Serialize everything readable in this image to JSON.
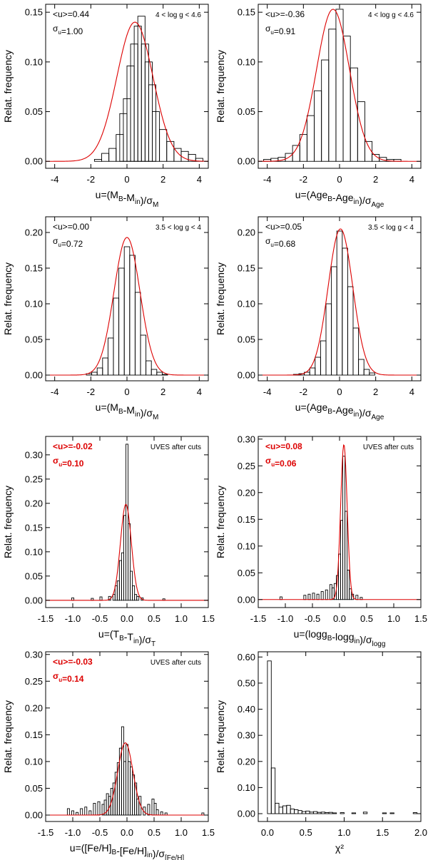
{
  "chart_data": [
    {
      "type": "bar",
      "xlabel": "u=(M_B-M_in)/σ_M",
      "ylabel": "Relat. frequency",
      "xlim": [
        -4.5,
        4.5
      ],
      "ylim": [
        -0.007,
        0.158
      ],
      "xticks": [
        -4,
        -2,
        0,
        2,
        4
      ],
      "yticks": [
        0.0,
        0.05,
        0.1,
        0.15
      ],
      "xtick_labels": [
        "-4",
        "-2",
        "0",
        "2",
        "4"
      ],
      "ytick_labels": [
        "0.00",
        "0.05",
        "0.10",
        "0.15"
      ],
      "annotations": {
        "mean": "<u>=0.44",
        "sigma": "σ_u=1.00",
        "condition": "4 < log g < 4.6",
        "color": "#000000"
      },
      "bin_width": 0.4,
      "bins": [
        {
          "x": -1.6,
          "y": 0.002
        },
        {
          "x": -1.2,
          "y": 0.008
        },
        {
          "x": -0.8,
          "y": 0.013
        },
        {
          "x": -0.4,
          "y": 0.027
        },
        {
          "x": -0.2,
          "y": 0.048
        },
        {
          "x": 0.0,
          "y": 0.063
        },
        {
          "x": 0.2,
          "y": 0.096
        },
        {
          "x": 0.4,
          "y": 0.118
        },
        {
          "x": 0.6,
          "y": 0.136
        },
        {
          "x": 0.8,
          "y": 0.146
        },
        {
          "x": 1.0,
          "y": 0.118
        },
        {
          "x": 1.2,
          "y": 0.1
        },
        {
          "x": 1.4,
          "y": 0.077
        },
        {
          "x": 1.6,
          "y": 0.05
        },
        {
          "x": 2.0,
          "y": 0.032
        },
        {
          "x": 2.4,
          "y": 0.02
        },
        {
          "x": 2.8,
          "y": 0.013
        },
        {
          "x": 3.2,
          "y": 0.01
        },
        {
          "x": 3.6,
          "y": 0.007
        },
        {
          "x": 4.0,
          "y": 0.003
        }
      ],
      "fit": {
        "mean": 0.44,
        "sigma": 1.0,
        "peak": 0.14,
        "color": "#dd0000"
      }
    },
    {
      "type": "bar",
      "xlabel": "u=(Age_B-Age_in)/σ_Age",
      "ylabel": "Relat. frequency",
      "xlim": [
        -4.5,
        4.5
      ],
      "ylim": [
        -0.007,
        0.158
      ],
      "xticks": [
        -4,
        -2,
        0,
        2,
        4
      ],
      "yticks": [
        0.0,
        0.05,
        0.1,
        0.15
      ],
      "xtick_labels": [
        "-4",
        "-2",
        "0",
        "2",
        "4"
      ],
      "ytick_labels": [
        "0.00",
        "0.05",
        "0.10",
        "0.15"
      ],
      "annotations": {
        "mean": "<u>=-0.36",
        "sigma": "σ_u=0.91",
        "condition": "4 < log g < 4.6",
        "color": "#000000"
      },
      "bin_width": 0.4,
      "bins": [
        {
          "x": -4.0,
          "y": 0.002
        },
        {
          "x": -3.6,
          "y": 0.003
        },
        {
          "x": -3.2,
          "y": 0.004
        },
        {
          "x": -2.8,
          "y": 0.008
        },
        {
          "x": -2.4,
          "y": 0.016
        },
        {
          "x": -2.0,
          "y": 0.027
        },
        {
          "x": -1.6,
          "y": 0.046
        },
        {
          "x": -1.2,
          "y": 0.071
        },
        {
          "x": -0.8,
          "y": 0.102
        },
        {
          "x": -0.4,
          "y": 0.133
        },
        {
          "x": 0.0,
          "y": 0.153
        },
        {
          "x": 0.4,
          "y": 0.126
        },
        {
          "x": 0.8,
          "y": 0.094
        },
        {
          "x": 1.2,
          "y": 0.06
        },
        {
          "x": 1.6,
          "y": 0.02
        },
        {
          "x": 2.0,
          "y": 0.007
        },
        {
          "x": 2.4,
          "y": 0.004
        },
        {
          "x": 2.8,
          "y": 0.002
        },
        {
          "x": 3.2,
          "y": 0.002
        }
      ],
      "fit": {
        "mean": -0.36,
        "sigma": 0.91,
        "peak": 0.153,
        "color": "#dd0000"
      }
    },
    {
      "type": "bar",
      "xlabel": "u=(M_B-M_in)/σ_M",
      "ylabel": "Relat. frequency",
      "xlim": [
        -4.5,
        4.5
      ],
      "ylim": [
        -0.008,
        0.222
      ],
      "xticks": [
        -4,
        -2,
        0,
        2,
        4
      ],
      "yticks": [
        0.0,
        0.05,
        0.1,
        0.15,
        0.2
      ],
      "xtick_labels": [
        "-4",
        "-2",
        "0",
        "2",
        "4"
      ],
      "ytick_labels": [
        "0.00",
        "0.05",
        "0.10",
        "0.15",
        "0.20"
      ],
      "annotations": {
        "mean": "<u>=0.00",
        "sigma": "σ_u=0.72",
        "condition": "3.5 < log g < 4",
        "color": "#000000"
      },
      "bin_width": 0.3,
      "bins": [
        {
          "x": -2.1,
          "y": 0.002
        },
        {
          "x": -1.8,
          "y": 0.004
        },
        {
          "x": -1.5,
          "y": 0.01
        },
        {
          "x": -1.2,
          "y": 0.024
        },
        {
          "x": -0.9,
          "y": 0.052
        },
        {
          "x": -0.6,
          "y": 0.108
        },
        {
          "x": -0.3,
          "y": 0.15
        },
        {
          "x": 0.0,
          "y": 0.18
        },
        {
          "x": 0.3,
          "y": 0.168
        },
        {
          "x": 0.6,
          "y": 0.116
        },
        {
          "x": 0.9,
          "y": 0.056
        },
        {
          "x": 1.2,
          "y": 0.02
        },
        {
          "x": 1.5,
          "y": 0.008
        },
        {
          "x": 1.8,
          "y": 0.004
        },
        {
          "x": 2.1,
          "y": 0.001
        }
      ],
      "fit": {
        "mean": 0.0,
        "sigma": 0.72,
        "peak": 0.193,
        "color": "#dd0000"
      }
    },
    {
      "type": "bar",
      "xlabel": "u=(Age_B-Age_in)/σ_Age",
      "ylabel": "Relat. frequency",
      "xlim": [
        -4.5,
        4.5
      ],
      "ylim": [
        -0.008,
        0.222
      ],
      "xticks": [
        -4,
        -2,
        0,
        2,
        4
      ],
      "yticks": [
        0.0,
        0.05,
        0.1,
        0.15,
        0.2
      ],
      "xtick_labels": [
        "-4",
        "-2",
        "0",
        "2",
        "4"
      ],
      "ytick_labels": [
        "0.00",
        "0.05",
        "0.10",
        "0.15",
        "0.20"
      ],
      "annotations": {
        "mean": "<u>=0.05",
        "sigma": "σ_u=0.68",
        "condition": "3.5 < log g < 4",
        "color": "#000000"
      },
      "bin_width": 0.3,
      "bins": [
        {
          "x": -2.4,
          "y": 0.001
        },
        {
          "x": -2.1,
          "y": 0.002
        },
        {
          "x": -1.8,
          "y": 0.004
        },
        {
          "x": -1.5,
          "y": 0.01
        },
        {
          "x": -1.2,
          "y": 0.025
        },
        {
          "x": -0.9,
          "y": 0.048
        },
        {
          "x": -0.6,
          "y": 0.1
        },
        {
          "x": -0.3,
          "y": 0.152
        },
        {
          "x": 0.0,
          "y": 0.202
        },
        {
          "x": 0.3,
          "y": 0.178
        },
        {
          "x": 0.6,
          "y": 0.124
        },
        {
          "x": 0.9,
          "y": 0.066
        },
        {
          "x": 1.2,
          "y": 0.022
        },
        {
          "x": 1.5,
          "y": 0.008
        },
        {
          "x": 1.8,
          "y": 0.003
        }
      ],
      "fit": {
        "mean": 0.05,
        "sigma": 0.68,
        "peak": 0.205,
        "color": "#dd0000"
      }
    },
    {
      "type": "bar",
      "xlabel": "u=(T_B-T_in)/σ_T",
      "ylabel": "Relat. frequency",
      "xlim": [
        -1.5,
        1.5
      ],
      "ylim": [
        -0.015,
        0.338
      ],
      "xticks": [
        -1.5,
        -1.0,
        -0.5,
        0.0,
        0.5,
        1.0,
        1.5
      ],
      "yticks": [
        0.0,
        0.05,
        0.1,
        0.15,
        0.2,
        0.25,
        0.3
      ],
      "xtick_labels": [
        "-1.5",
        "-1.0",
        "-0.5",
        "0.0",
        "0.5",
        "1.0",
        "1.5"
      ],
      "ytick_labels": [
        "0.00",
        "0.05",
        "0.10",
        "0.15",
        "0.20",
        "0.25",
        "0.30"
      ],
      "annotations": {
        "mean": "<u>=-0.02",
        "sigma": "σ_u=0.10",
        "condition": "UVES after cuts",
        "color": "#dd0000"
      },
      "bin_width": 0.04,
      "bins": [
        {
          "x": -1.0,
          "y": 0.005
        },
        {
          "x": -0.64,
          "y": 0.004
        },
        {
          "x": -0.48,
          "y": 0.007
        },
        {
          "x": -0.32,
          "y": 0.008
        },
        {
          "x": -0.24,
          "y": 0.012
        },
        {
          "x": -0.2,
          "y": 0.03
        },
        {
          "x": -0.16,
          "y": 0.04
        },
        {
          "x": -0.12,
          "y": 0.082
        },
        {
          "x": -0.08,
          "y": 0.098
        },
        {
          "x": -0.04,
          "y": 0.175
        },
        {
          "x": 0.0,
          "y": 0.322
        },
        {
          "x": 0.04,
          "y": 0.158
        },
        {
          "x": 0.08,
          "y": 0.06
        },
        {
          "x": 0.12,
          "y": 0.03
        },
        {
          "x": 0.16,
          "y": 0.012
        },
        {
          "x": 0.2,
          "y": 0.008
        },
        {
          "x": 0.28,
          "y": 0.005
        },
        {
          "x": 0.68,
          "y": 0.003
        }
      ],
      "fit": {
        "mean": -0.02,
        "sigma": 0.1,
        "peak": 0.198,
        "color": "#dd0000"
      }
    },
    {
      "type": "bar",
      "xlabel": "u=(logg_B-logg_in)/σ_logg",
      "ylabel": "Relat. frequency",
      "xlim": [
        -1.5,
        1.5
      ],
      "ylim": [
        -0.015,
        0.305
      ],
      "xticks": [
        -1.5,
        -1.0,
        -0.5,
        0.0,
        0.5,
        1.0,
        1.5
      ],
      "yticks": [
        0.0,
        0.05,
        0.1,
        0.15,
        0.2,
        0.25,
        0.3
      ],
      "xtick_labels": [
        "-1.5",
        "-1.0",
        "-0.5",
        "0.0",
        "0.5",
        "1.0",
        "1.5"
      ],
      "ytick_labels": [
        "0.00",
        "0.05",
        "0.10",
        "0.15",
        "0.20",
        "0.25",
        "0.30"
      ],
      "annotations": {
        "mean": "<u>=0.08",
        "sigma": "σ_u=0.06",
        "condition": "UVES after cuts",
        "color": "#dd0000"
      },
      "bin_width": 0.04,
      "bins": [
        {
          "x": -1.08,
          "y": 0.005
        },
        {
          "x": -0.64,
          "y": 0.008
        },
        {
          "x": -0.56,
          "y": 0.01
        },
        {
          "x": -0.48,
          "y": 0.012
        },
        {
          "x": -0.4,
          "y": 0.01
        },
        {
          "x": -0.32,
          "y": 0.015
        },
        {
          "x": -0.24,
          "y": 0.018
        },
        {
          "x": -0.16,
          "y": 0.028
        },
        {
          "x": -0.12,
          "y": 0.022
        },
        {
          "x": -0.08,
          "y": 0.03
        },
        {
          "x": -0.04,
          "y": 0.045
        },
        {
          "x": 0.0,
          "y": 0.085
        },
        {
          "x": 0.04,
          "y": 0.148
        },
        {
          "x": 0.08,
          "y": 0.268
        },
        {
          "x": 0.12,
          "y": 0.165
        },
        {
          "x": 0.16,
          "y": 0.055
        },
        {
          "x": 0.2,
          "y": 0.02
        },
        {
          "x": 0.24,
          "y": 0.01
        },
        {
          "x": 0.32,
          "y": 0.008
        },
        {
          "x": 0.4,
          "y": 0.004
        }
      ],
      "fit": {
        "mean": 0.08,
        "sigma": 0.06,
        "peak": 0.29,
        "color": "#dd0000"
      }
    },
    {
      "type": "bar",
      "xlabel": "u=([Fe/H]_B-[Fe/H]_in)/σ_[Fe/H]",
      "ylabel": "Relat. frequency",
      "xlim": [
        -1.5,
        1.5
      ],
      "ylim": [
        -0.012,
        0.305
      ],
      "xticks": [
        -1.5,
        -1.0,
        -0.5,
        0.0,
        0.5,
        1.0,
        1.5
      ],
      "yticks": [
        0.0,
        0.05,
        0.1,
        0.15,
        0.2,
        0.25,
        0.3
      ],
      "xtick_labels": [
        "-1.5",
        "-1.0",
        "-0.5",
        "0.0",
        "0.5",
        "1.0",
        "1.5"
      ],
      "ytick_labels": [
        "0.00",
        "0.05",
        "0.10",
        "0.15",
        "0.20",
        "0.25",
        "0.30"
      ],
      "annotations": {
        "mean": "<u>=-0.03",
        "sigma": "σ_u=0.14",
        "condition": "UVES after cuts",
        "color": "#dd0000"
      },
      "bin_width": 0.04,
      "bins": [
        {
          "x": -1.08,
          "y": 0.012
        },
        {
          "x": -1.0,
          "y": 0.008
        },
        {
          "x": -0.92,
          "y": 0.005
        },
        {
          "x": -0.84,
          "y": 0.012
        },
        {
          "x": -0.76,
          "y": 0.015
        },
        {
          "x": -0.68,
          "y": 0.008
        },
        {
          "x": -0.6,
          "y": 0.022
        },
        {
          "x": -0.52,
          "y": 0.025
        },
        {
          "x": -0.44,
          "y": 0.02
        },
        {
          "x": -0.4,
          "y": 0.028
        },
        {
          "x": -0.36,
          "y": 0.04
        },
        {
          "x": -0.32,
          "y": 0.035
        },
        {
          "x": -0.28,
          "y": 0.05
        },
        {
          "x": -0.24,
          "y": 0.06
        },
        {
          "x": -0.2,
          "y": 0.08
        },
        {
          "x": -0.16,
          "y": 0.098
        },
        {
          "x": -0.12,
          "y": 0.125
        },
        {
          "x": -0.08,
          "y": 0.165
        },
        {
          "x": -0.04,
          "y": 0.1
        },
        {
          "x": 0.0,
          "y": 0.132
        },
        {
          "x": 0.04,
          "y": 0.1
        },
        {
          "x": 0.08,
          "y": 0.09
        },
        {
          "x": 0.12,
          "y": 0.075
        },
        {
          "x": 0.16,
          "y": 0.06
        },
        {
          "x": 0.2,
          "y": 0.03
        },
        {
          "x": 0.24,
          "y": 0.035
        },
        {
          "x": 0.32,
          "y": 0.015
        },
        {
          "x": 0.4,
          "y": 0.02
        },
        {
          "x": 0.48,
          "y": 0.03
        },
        {
          "x": 0.52,
          "y": 0.022
        },
        {
          "x": 0.56,
          "y": 0.01
        },
        {
          "x": 0.64,
          "y": 0.006
        },
        {
          "x": 0.72,
          "y": 0.004
        },
        {
          "x": 1.4,
          "y": 0.004
        }
      ],
      "fit": {
        "mean": -0.03,
        "sigma": 0.14,
        "peak": 0.135,
        "color": "#dd0000"
      }
    },
    {
      "type": "bar",
      "xlabel": "χ²",
      "ylabel": "Relat. frequency",
      "xlim": [
        -0.12,
        2.0
      ],
      "ylim": [
        -0.03,
        0.62
      ],
      "xticks": [
        0.0,
        0.5,
        1.0,
        1.5,
        2.0
      ],
      "yticks": [
        0.0,
        0.1,
        0.2,
        0.3,
        0.4,
        0.5,
        0.6
      ],
      "xtick_labels": [
        "0.0",
        "0.5",
        "1.0",
        "1.5",
        "2.0"
      ],
      "ytick_labels": [
        "0.00",
        "0.10",
        "0.20",
        "0.30",
        "0.40",
        "0.50",
        "0.60"
      ],
      "annotations": null,
      "bin_width": 0.05,
      "bins": [
        {
          "x": 0.025,
          "y": 0.585
        },
        {
          "x": 0.075,
          "y": 0.175
        },
        {
          "x": 0.125,
          "y": 0.04
        },
        {
          "x": 0.175,
          "y": 0.025
        },
        {
          "x": 0.225,
          "y": 0.03
        },
        {
          "x": 0.275,
          "y": 0.032
        },
        {
          "x": 0.325,
          "y": 0.018
        },
        {
          "x": 0.375,
          "y": 0.015
        },
        {
          "x": 0.425,
          "y": 0.012
        },
        {
          "x": 0.475,
          "y": 0.008
        },
        {
          "x": 0.525,
          "y": 0.01
        },
        {
          "x": 0.575,
          "y": 0.006
        },
        {
          "x": 0.625,
          "y": 0.008
        },
        {
          "x": 0.675,
          "y": 0.005
        },
        {
          "x": 0.725,
          "y": 0.006
        },
        {
          "x": 0.775,
          "y": 0.004
        },
        {
          "x": 0.825,
          "y": 0.005
        },
        {
          "x": 0.875,
          "y": 0.003
        },
        {
          "x": 0.975,
          "y": 0.004
        },
        {
          "x": 1.125,
          "y": 0.003
        },
        {
          "x": 1.275,
          "y": 0.006
        },
        {
          "x": 1.525,
          "y": 0.003
        },
        {
          "x": 1.625,
          "y": 0.003
        },
        {
          "x": 1.925,
          "y": 0.004
        }
      ],
      "fit": null
    }
  ]
}
